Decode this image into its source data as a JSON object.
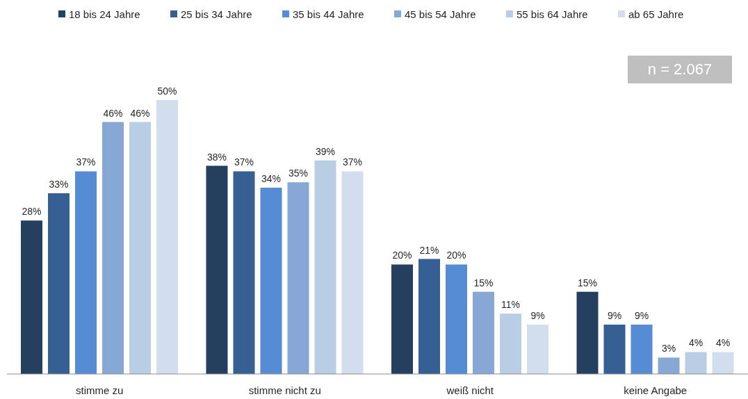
{
  "chart_data": {
    "type": "bar",
    "categories": [
      "stimme zu",
      "stimme nicht zu",
      "weiß nicht",
      "keine Angabe"
    ],
    "series": [
      {
        "name": "18 bis 24 Jahre",
        "color": "#253f5f",
        "values": [
          28,
          38,
          20,
          15
        ],
        "value_labels": [
          "28%",
          "38%",
          "20%",
          "15%"
        ]
      },
      {
        "name": "25 bis 34 Jahre",
        "color": "#365f93",
        "values": [
          33,
          37,
          21,
          9
        ],
        "value_labels": [
          "33%",
          "37%",
          "21%",
          "9%"
        ]
      },
      {
        "name": "35 bis 44 Jahre",
        "color": "#558cd4",
        "values": [
          37,
          34,
          20,
          9
        ],
        "value_labels": [
          "37%",
          "34%",
          "20%",
          "9%"
        ]
      },
      {
        "name": "45 bis 54 Jahre",
        "color": "#87a7d5",
        "values": [
          46,
          35,
          15,
          3
        ],
        "value_labels": [
          "46%",
          "35%",
          "15%",
          "3%"
        ]
      },
      {
        "name": "55 bis 64 Jahre",
        "color": "#b9cde5",
        "values": [
          46,
          39,
          11,
          4
        ],
        "value_labels": [
          "46%",
          "39%",
          "11%",
          "4%"
        ]
      },
      {
        "name": "ab 65 Jahre",
        "color": "#d2deee",
        "values": [
          50,
          37,
          9,
          4
        ],
        "value_labels": [
          "50%",
          "37%",
          "9%",
          "4%"
        ]
      }
    ],
    "legend": "top",
    "annotations": [
      "n = 2.067"
    ]
  }
}
